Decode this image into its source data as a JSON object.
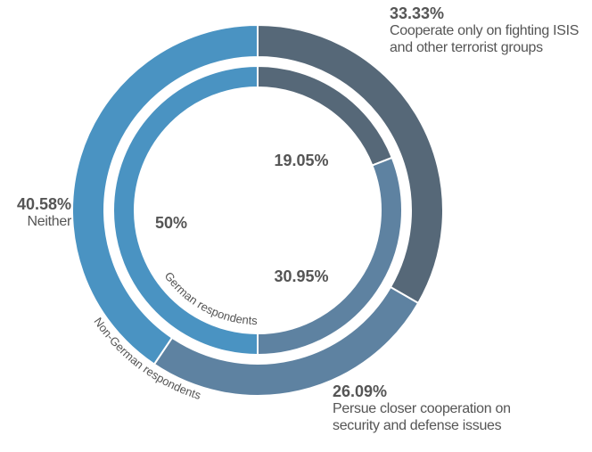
{
  "chart_data": {
    "type": "donut",
    "categories": [
      "Cooperate only on fighting ISIS and other terrorist groups",
      "Persue closer cooperation  on security and defense issues",
      "Neither"
    ],
    "series": [
      {
        "name": "German respondents",
        "values": [
          19.05,
          30.95,
          50
        ],
        "value_labels": [
          "19.05%",
          "30.95%",
          "50%"
        ],
        "colors": [
          "#566878",
          "#5e82a1",
          "#4a93c2"
        ]
      },
      {
        "name": "Non-German respondents",
        "values": [
          33.33,
          26.09,
          40.58
        ],
        "value_labels": [
          "33.33%",
          "26.09%",
          "40.58%"
        ],
        "colors": [
          "#566878",
          "#5e82a1",
          "#4a93c2"
        ]
      }
    ]
  }
}
